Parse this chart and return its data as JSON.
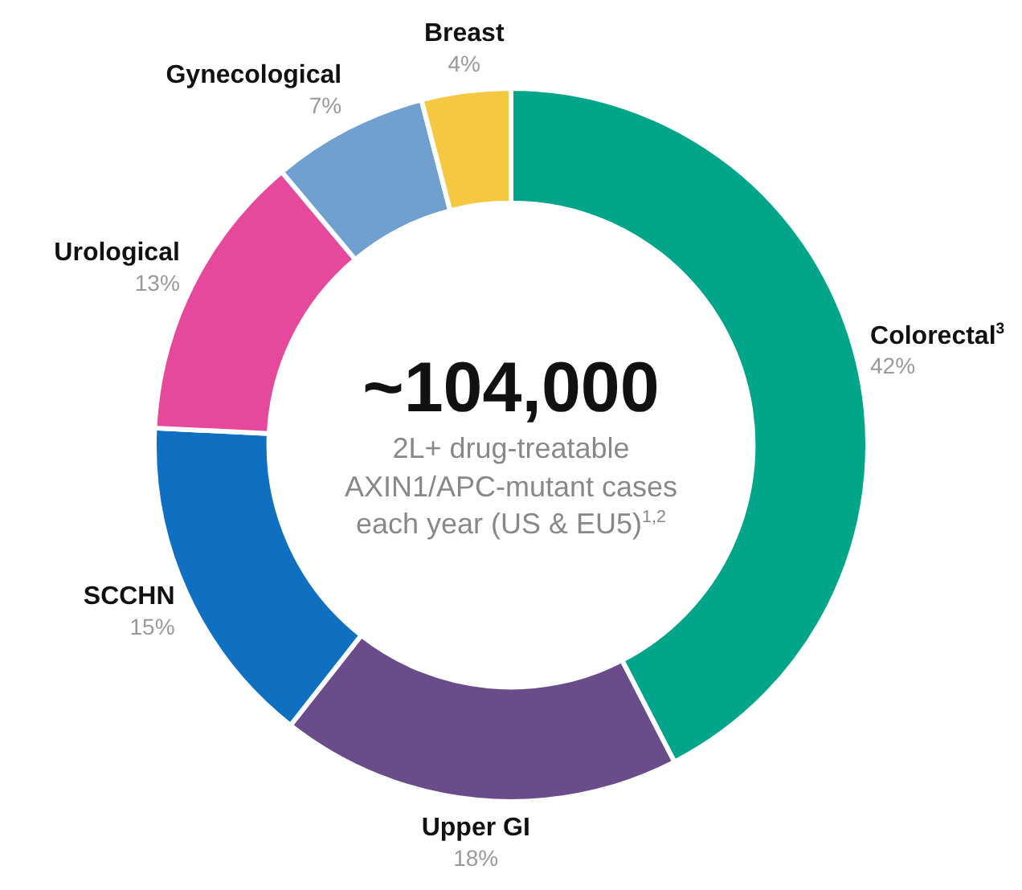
{
  "chart_data": {
    "type": "donut",
    "categories": [
      "Colorectal$^{3}$",
      "Upper GI",
      "SCCHN",
      "Urological",
      "Gynecological",
      "Breast"
    ],
    "values": [
      42,
      18,
      15,
      13,
      7,
      4
    ],
    "value_labels": [
      "42%",
      "18%",
      "15%",
      "13%",
      "7%",
      "4%"
    ],
    "colors": [
      "#00a58a",
      "#6b4c8a",
      "#0f6fc0",
      "#e6489c",
      "#6fa0d0",
      "#f5c842"
    ],
    "annotations": [
      "~104,000",
      "2L+ drug-treatable",
      "AXIN1/APC-mutant cases",
      "each year (US & EU5)$^{1,2}$"
    ],
    "legend": false
  }
}
